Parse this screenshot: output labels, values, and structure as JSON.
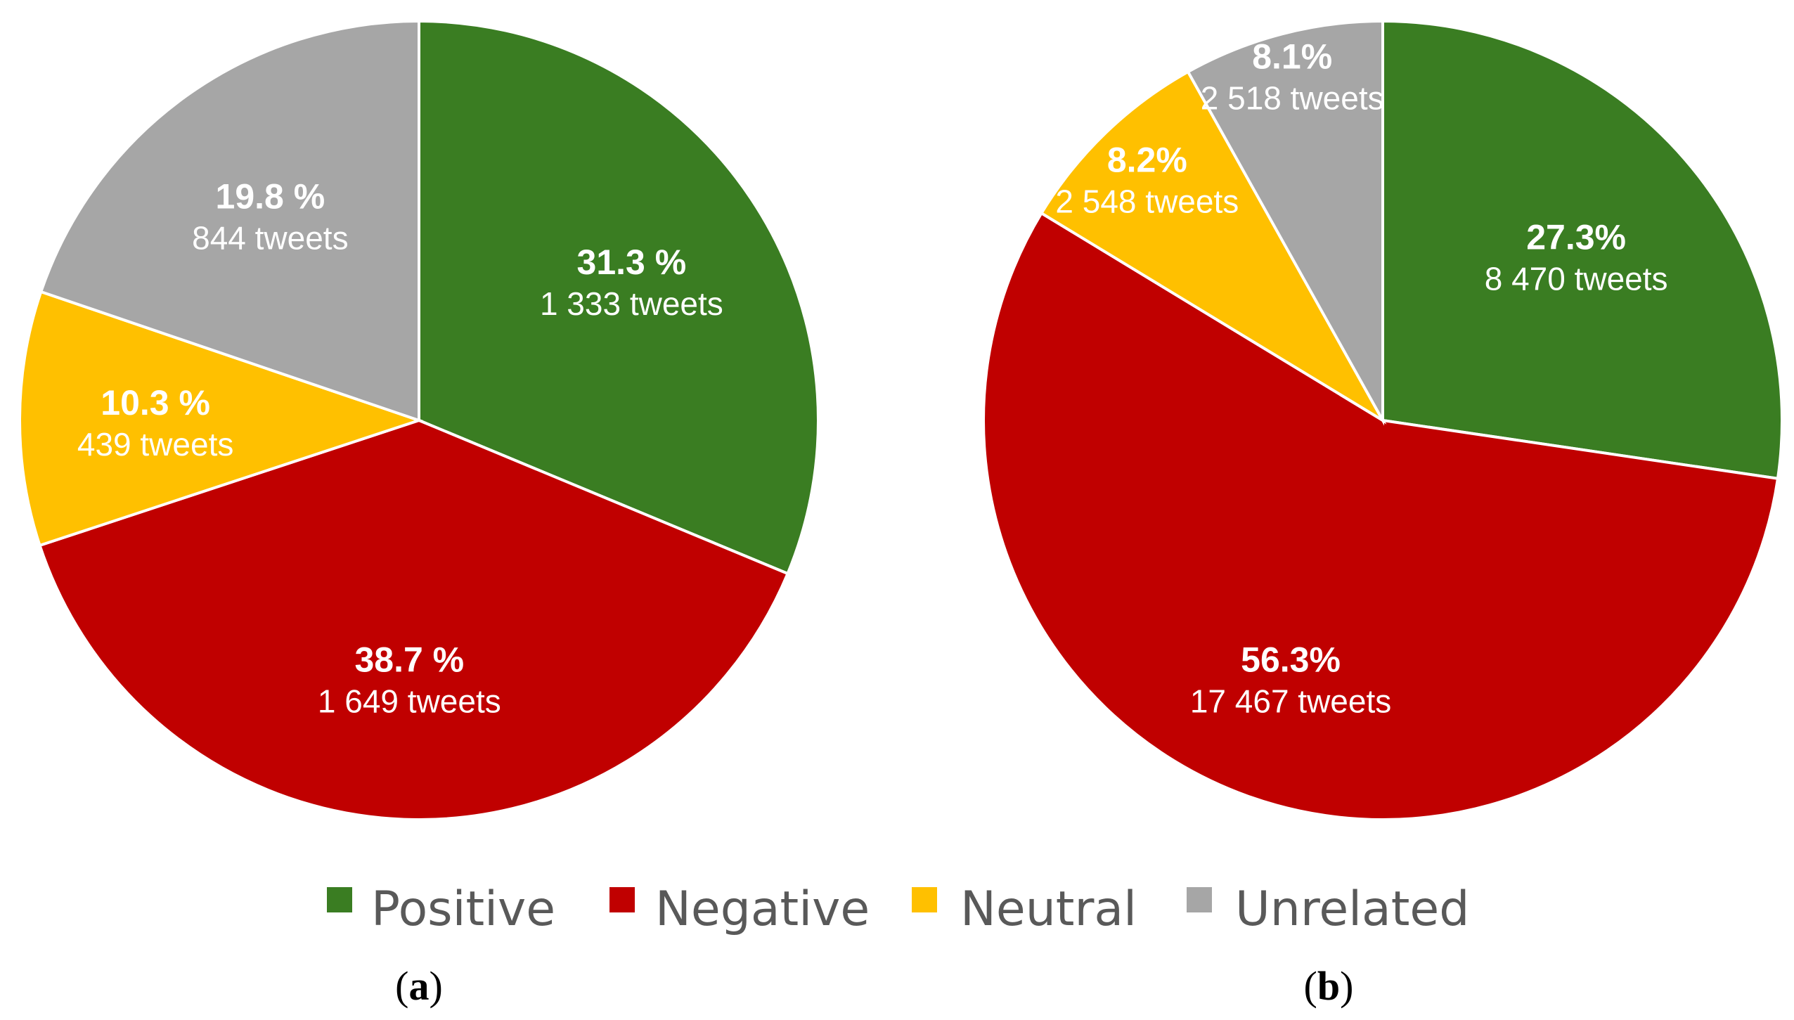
{
  "chart_data": [
    {
      "type": "pie",
      "panel_label": "a",
      "slices": [
        {
          "category": "Positive",
          "percent": 31.3,
          "percent_label": "31.3 %",
          "count_label": "1 333 tweets",
          "color": "#3A7D22"
        },
        {
          "category": "Negative",
          "percent": 38.7,
          "percent_label": "38.7 %",
          "count_label": "1 649 tweets",
          "color": "#C00000"
        },
        {
          "category": "Neutral",
          "percent": 10.3,
          "percent_label": "10.3 %",
          "count_label": "439 tweets",
          "color": "#FFC000"
        },
        {
          "category": "Unrelated",
          "percent": 19.8,
          "percent_label": "19.8 %",
          "count_label": "844 tweets",
          "color": "#A6A6A6"
        }
      ]
    },
    {
      "type": "pie",
      "panel_label": "b",
      "slices": [
        {
          "category": "Positive",
          "percent": 27.3,
          "percent_label": "27.3%",
          "count_label": "8 470 tweets",
          "color": "#3A7D22"
        },
        {
          "category": "Negative",
          "percent": 56.3,
          "percent_label": "56.3%",
          "count_label": "17 467 tweets",
          "color": "#C00000"
        },
        {
          "category": "Neutral",
          "percent": 8.2,
          "percent_label": "8.2%",
          "count_label": "2 548 tweets",
          "color": "#FFC000"
        },
        {
          "category": "Unrelated",
          "percent": 8.1,
          "percent_label": "8.1%",
          "count_label": "2 518 tweets",
          "color": "#A6A6A6"
        }
      ]
    }
  ],
  "legend": {
    "placement": "bottom-center",
    "items": [
      {
        "label": "Positive",
        "color": "#3A7D22"
      },
      {
        "label": "Negative",
        "color": "#C00000"
      },
      {
        "label": "Neutral",
        "color": "#FFC000"
      },
      {
        "label": "Unrelated",
        "color": "#A6A6A6"
      }
    ]
  }
}
